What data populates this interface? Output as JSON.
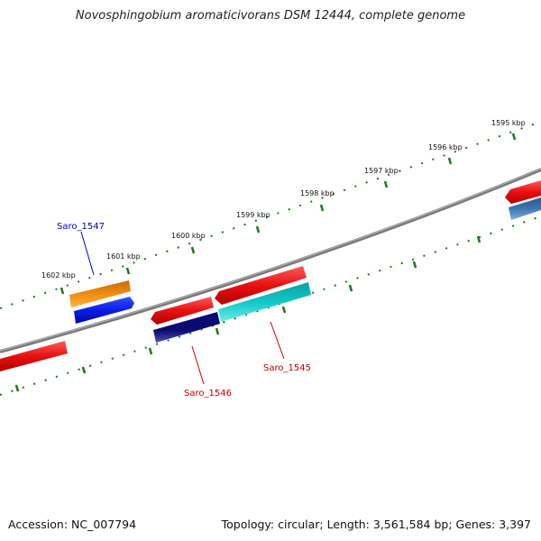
{
  "title": "Novosphingobium aromaticivorans DSM 12444, complete genome",
  "footer": {
    "accession": "Accession: NC_007794",
    "summary": "Topology: circular; Length: 3,561,584 bp; Genes: 3,397"
  },
  "ruler_labels": [
    "1595 kbp",
    "1596 kbp",
    "1597 kbp",
    "1598 kbp",
    "1599 kbp",
    "1600 kbp",
    "1601 kbp",
    "1602 kbp"
  ],
  "gene_labels": {
    "saro_1547": "Saro_1547",
    "saro_1546": "Saro_1546",
    "saro_1545": "Saro_1545"
  },
  "colors": {
    "backbone": "#7a7a7a",
    "ruler": "#1a7a1a",
    "label_blue": "#0000cc",
    "label_red": "#cc0000",
    "red_feature": "#e81010",
    "orange_feature": "#f08c10",
    "blue_feature": "#0a1ee8",
    "navy_feature": "#0a0a78",
    "cyan_feature": "#10c8c8",
    "steel_feature": "#3a78b0"
  }
}
